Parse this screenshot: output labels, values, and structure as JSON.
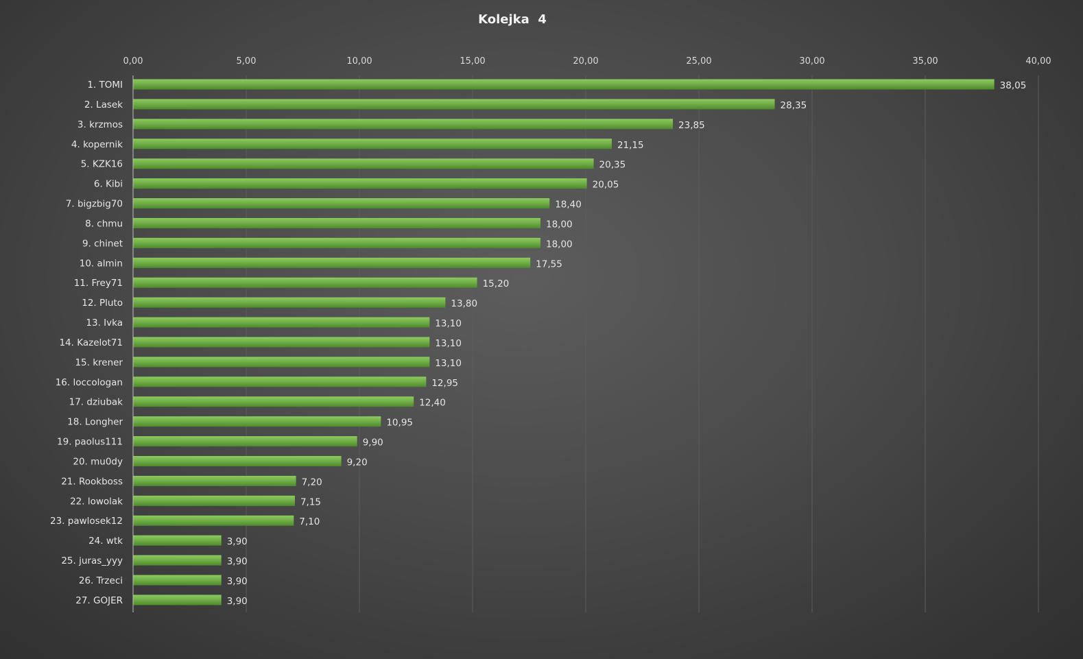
{
  "chart_data": {
    "type": "bar",
    "orientation": "horizontal",
    "title": "Kolejka  4",
    "xlabel": "",
    "ylabel": "",
    "xlim": [
      0,
      40
    ],
    "x_ticks": [
      "0,00",
      "5,00",
      "10,00",
      "15,00",
      "20,00",
      "25,00",
      "30,00",
      "35,00",
      "40,00"
    ],
    "x_axis_position": "top",
    "grid": true,
    "legend": "none",
    "bar_color": "#70ad47",
    "categories": [
      "1. TOMI",
      "2. Lasek",
      "3. krzmos",
      "4. kopernik",
      "5. KZK16",
      "6. Kibi",
      "7. bigzbig70",
      "8. chmu",
      "9. chinet",
      "10. almin",
      "11. Frey71",
      "12. Pluto",
      "13. Ivka",
      "14. Kazelot71",
      "15. krener",
      "16. loccologan",
      "17. dziubak",
      "18. Longher",
      "19. paolus111",
      "20. mu0dy",
      "21. Rookboss",
      "22. lowolak",
      "23. pawlosek12",
      "24. wtk",
      "25. juras_yyy",
      "26. Trzeci",
      "27. GOJER"
    ],
    "values": [
      38.05,
      28.35,
      23.85,
      21.15,
      20.35,
      20.05,
      18.4,
      18.0,
      18.0,
      17.55,
      15.2,
      13.8,
      13.1,
      13.1,
      13.1,
      12.95,
      12.4,
      10.95,
      9.9,
      9.2,
      7.2,
      7.15,
      7.1,
      3.9,
      3.9,
      3.9,
      3.9
    ],
    "value_labels": [
      "38,05",
      "28,35",
      "23,85",
      "21,15",
      "20,35",
      "20,05",
      "18,40",
      "18,00",
      "18,00",
      "17,55",
      "15,20",
      "13,80",
      "13,10",
      "13,10",
      "13,10",
      "12,95",
      "12,40",
      "10,95",
      "9,90",
      "9,20",
      "7,20",
      "7,15",
      "7,10",
      "3,90",
      "3,90",
      "3,90",
      "3,90"
    ]
  }
}
